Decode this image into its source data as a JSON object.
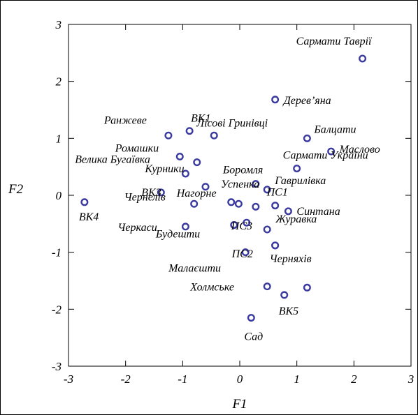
{
  "chart_data": {
    "type": "scatter",
    "title": "",
    "xlabel": "F1",
    "ylabel": "F2",
    "xlim": [
      -3,
      3
    ],
    "ylim": [
      -3,
      3
    ],
    "xticks": [
      "-3",
      "-2",
      "-1",
      "0",
      "1",
      "2",
      "3"
    ],
    "yticks": [
      "-3",
      "-2",
      "-1",
      "0",
      "1",
      "2",
      "3"
    ],
    "grid": false,
    "marker_color": "#3a3aa0",
    "points": [
      {
        "label": "Сармати Таврії",
        "x": 2.15,
        "y": 2.4
      },
      {
        "label": "Дерев’яна",
        "x": 0.62,
        "y": 1.68
      },
      {
        "label": "ВК1",
        "x": -0.88,
        "y": 1.13
      },
      {
        "label": "Лісові Гринівці",
        "x": -0.45,
        "y": 1.05
      },
      {
        "label": "Ранжеве",
        "x": -1.25,
        "y": 1.05
      },
      {
        "label": "Балцати",
        "x": 1.18,
        "y": 1.0
      },
      {
        "label": "Маслово",
        "x": 1.6,
        "y": 0.77
      },
      {
        "label": "Велика Бугаївка",
        "x": -1.05,
        "y": 0.68
      },
      {
        "label": "Ромашки",
        "x": -0.75,
        "y": 0.58
      },
      {
        "label": "Сармати України",
        "x": 1.0,
        "y": 0.47
      },
      {
        "label": "Курники",
        "x": -0.95,
        "y": 0.38
      },
      {
        "label": "Боромля",
        "x": 0.28,
        "y": 0.2
      },
      {
        "label": "Гаврилівка",
        "x": 0.48,
        "y": 0.1
      },
      {
        "label": "Успенка",
        "x": -0.6,
        "y": 0.15
      },
      {
        "label": "ВК3",
        "x": -1.38,
        "y": 0.05
      },
      {
        "label": "ВК4",
        "x": -2.72,
        "y": -0.12
      },
      {
        "label": "Чернелів",
        "x": -0.8,
        "y": -0.15
      },
      {
        "label": "Нагорне",
        "x": -0.15,
        "y": -0.12
      },
      {
        "label": "",
        "x": -0.02,
        "y": -0.15
      },
      {
        "label": "ПС1",
        "x": 0.62,
        "y": -0.18
      },
      {
        "label": "",
        "x": 0.28,
        "y": -0.2
      },
      {
        "label": "Синтана",
        "x": 0.85,
        "y": -0.28
      },
      {
        "label": "ПС3",
        "x": 0.12,
        "y": -0.48
      },
      {
        "label": "",
        "x": -0.1,
        "y": -0.52
      },
      {
        "label": "Черкаси",
        "x": -0.95,
        "y": -0.55
      },
      {
        "label": "Журавка",
        "x": 0.48,
        "y": -0.6
      },
      {
        "label": "Будешти",
        "x": -0.1,
        "y": -0.52
      },
      {
        "label": "ПС2",
        "x": 0.62,
        "y": -0.88
      },
      {
        "label": "Малаєшти",
        "x": 0.1,
        "y": -1.0
      },
      {
        "label": "Черняхів",
        "x": 0.62,
        "y": -0.88
      },
      {
        "label": "Холмське",
        "x": 0.48,
        "y": -1.6
      },
      {
        "label": "ВК5",
        "x": 0.78,
        "y": -1.75
      },
      {
        "label": "",
        "x": 1.18,
        "y": -1.62
      },
      {
        "label": "Сад",
        "x": 0.2,
        "y": -2.15
      }
    ]
  }
}
